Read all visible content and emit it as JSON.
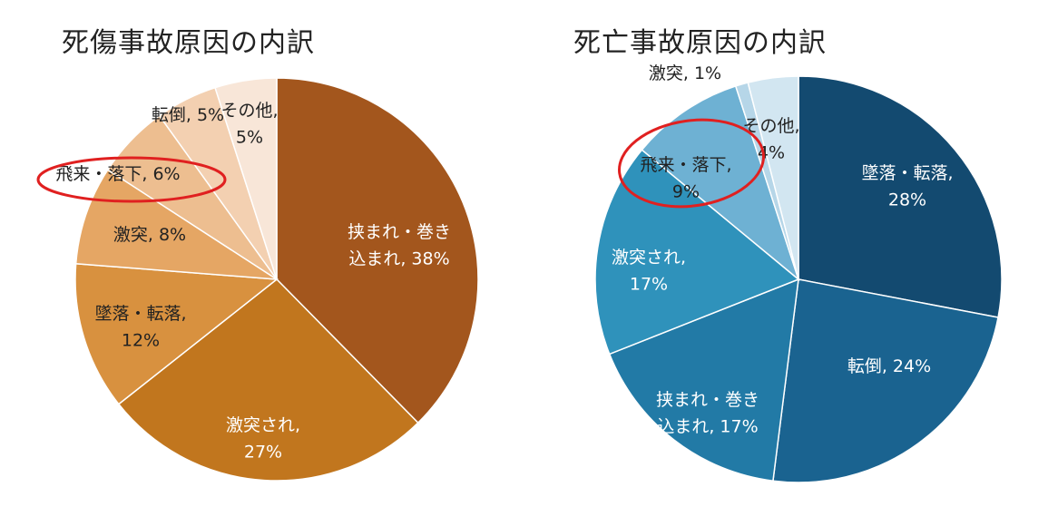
{
  "chart_data": [
    {
      "type": "pie",
      "title": "死傷事故原因の内訳",
      "slices": [
        {
          "label": "挟まれ・巻き込まれ",
          "value": 38,
          "text_lines": [
            "挟まれ・巻き",
            "込まれ, 38%"
          ],
          "color": "#a3561d",
          "text_color": "#ffffff"
        },
        {
          "label": "激突され",
          "value": 27,
          "text_lines": [
            "激突され,",
            "27%"
          ],
          "color": "#c1761e",
          "text_color": "#ffffff"
        },
        {
          "label": "墜落・転落",
          "value": 12,
          "text_lines": [
            "墜落・転落,",
            "12%"
          ],
          "color": "#d8913f",
          "text_color": "#222222"
        },
        {
          "label": "激突",
          "value": 8,
          "text_lines": [
            "激突, 8%"
          ],
          "color": "#e5a664",
          "text_color": "#222222"
        },
        {
          "label": "飛来・落下",
          "value": 6,
          "text_lines": [
            "飛来・落下, 6%"
          ],
          "color": "#edbe90",
          "text_color": "#222222"
        },
        {
          "label": "転倒",
          "value": 5,
          "text_lines": [
            "転倒, 5%"
          ],
          "color": "#f3d0b1",
          "text_color": "#222222"
        },
        {
          "label": "その他",
          "value": 5,
          "text_lines": [
            "その他,",
            "5%"
          ],
          "color": "#f8e6d8",
          "text_color": "#222222"
        }
      ],
      "highlight": "飛来・落下",
      "highlight_color": "#e02020"
    },
    {
      "type": "pie",
      "title": "死亡事故原因の内訳",
      "slices": [
        {
          "label": "墜落・転落",
          "value": 28,
          "text_lines": [
            "墜落・転落,",
            "28%"
          ],
          "color": "#134a70",
          "text_color": "#ffffff"
        },
        {
          "label": "転倒",
          "value": 24,
          "text_lines": [
            "転倒, 24%"
          ],
          "color": "#1a6390",
          "text_color": "#ffffff"
        },
        {
          "label": "挟まれ・巻き込まれ",
          "value": 17,
          "text_lines": [
            "挟まれ・巻き",
            "込まれ, 17%"
          ],
          "color": "#227aa6",
          "text_color": "#ffffff"
        },
        {
          "label": "激突され",
          "value": 17,
          "text_lines": [
            "激突され,",
            "17%"
          ],
          "color": "#2f92bb",
          "text_color": "#ffffff"
        },
        {
          "label": "飛来・落下",
          "value": 9,
          "text_lines": [
            "飛来・落下,",
            "9%"
          ],
          "color": "#6eb1d3",
          "text_color": "#222222"
        },
        {
          "label": "激突",
          "value": 1,
          "text_lines": [
            "激突, 1%"
          ],
          "color": "#b6d6e8",
          "text_color": "#222222"
        },
        {
          "label": "その他",
          "value": 4,
          "text_lines": [
            "その他,",
            "4%"
          ],
          "color": "#d2e6f1",
          "text_color": "#222222"
        }
      ],
      "highlight": "飛来・落下",
      "highlight_color": "#e02020"
    }
  ]
}
